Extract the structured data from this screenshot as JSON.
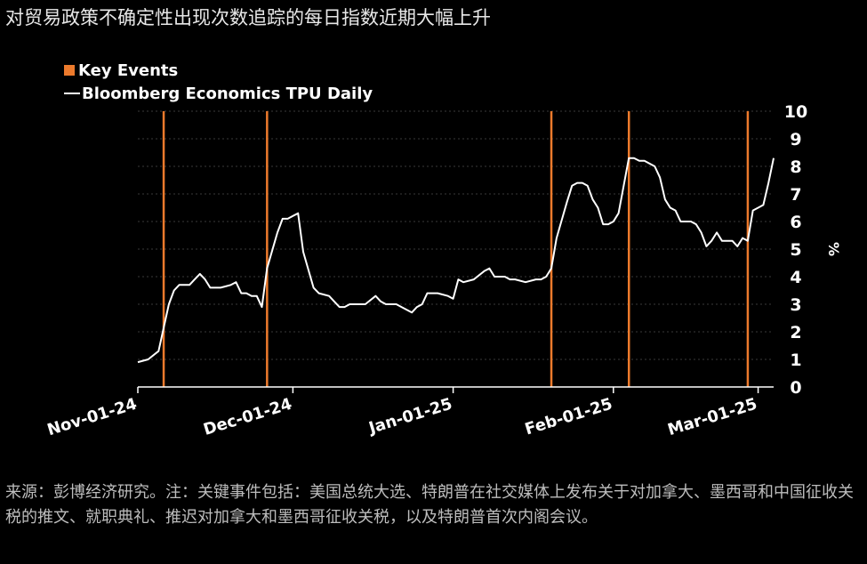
{
  "title": "对贸易政策不确定性出现次数追踪的每日指数近期大幅上升",
  "note": "来源：彭博经济研究。注：关键事件包括：美国总统大选、特朗普在社交媒体上发布关于对加拿大、墨西哥和中国征收关税的推文、就职典礼、推迟对加拿大和墨西哥征收关税，以及特朗普首次内阁会议。",
  "colors": {
    "background": "#000000",
    "series": "#ffffff",
    "events": "#ec7a2c",
    "grid": "#3a3a3a"
  },
  "chart_data": {
    "type": "line",
    "title": "对贸易政策不确定性出现次数追踪的每日指数近期大幅上升",
    "ylabel": "%",
    "ylim": [
      0,
      10
    ],
    "y_ticks": [
      0,
      1,
      2,
      3,
      4,
      5,
      6,
      7,
      8,
      9,
      10
    ],
    "grid": true,
    "legend_position": "top-left",
    "legend": [
      "Key Events",
      "Bloomberg Economics TPU Daily"
    ],
    "x_ticks": [
      "Nov-01-24",
      "Dec-01-24",
      "Jan-01-25",
      "Feb-01-25",
      "Mar-01-25"
    ],
    "key_events": [
      "2024-11-06",
      "2024-11-26",
      "2025-01-20",
      "2025-02-04",
      "2025-02-27"
    ],
    "series": [
      {
        "name": "Bloomberg Economics TPU Daily",
        "points": [
          [
            "2024-11-01",
            0.9
          ],
          [
            "2024-11-03",
            1.0
          ],
          [
            "2024-11-05",
            1.3
          ],
          [
            "2024-11-07",
            3.0
          ],
          [
            "2024-11-08",
            3.5
          ],
          [
            "2024-11-09",
            3.7
          ],
          [
            "2024-11-11",
            3.7
          ],
          [
            "2024-11-12",
            3.9
          ],
          [
            "2024-11-13",
            4.1
          ],
          [
            "2024-11-14",
            3.9
          ],
          [
            "2024-11-15",
            3.6
          ],
          [
            "2024-11-17",
            3.6
          ],
          [
            "2024-11-19",
            3.7
          ],
          [
            "2024-11-20",
            3.8
          ],
          [
            "2024-11-21",
            3.4
          ],
          [
            "2024-11-22",
            3.4
          ],
          [
            "2024-11-23",
            3.3
          ],
          [
            "2024-11-24",
            3.3
          ],
          [
            "2024-11-25",
            2.9
          ],
          [
            "2024-11-26",
            4.3
          ],
          [
            "2024-11-28",
            5.6
          ],
          [
            "2024-11-29",
            6.1
          ],
          [
            "2024-11-30",
            6.1
          ],
          [
            "2024-12-01",
            6.2
          ],
          [
            "2024-12-02",
            6.3
          ],
          [
            "2024-12-03",
            4.9
          ],
          [
            "2024-12-05",
            3.6
          ],
          [
            "2024-12-06",
            3.4
          ],
          [
            "2024-12-08",
            3.3
          ],
          [
            "2024-12-09",
            3.1
          ],
          [
            "2024-12-10",
            2.9
          ],
          [
            "2024-12-11",
            2.9
          ],
          [
            "2024-12-12",
            3.0
          ],
          [
            "2024-12-14",
            3.0
          ],
          [
            "2024-12-15",
            3.0
          ],
          [
            "2024-12-17",
            3.3
          ],
          [
            "2024-12-18",
            3.1
          ],
          [
            "2024-12-19",
            3.0
          ],
          [
            "2024-12-21",
            3.0
          ],
          [
            "2024-12-22",
            2.9
          ],
          [
            "2024-12-24",
            2.7
          ],
          [
            "2024-12-25",
            2.9
          ],
          [
            "2024-12-26",
            3.0
          ],
          [
            "2024-12-27",
            3.4
          ],
          [
            "2024-12-29",
            3.4
          ],
          [
            "2024-12-31",
            3.3
          ],
          [
            "2025-01-01",
            3.2
          ],
          [
            "2025-01-02",
            3.9
          ],
          [
            "2025-01-03",
            3.8
          ],
          [
            "2025-01-05",
            3.9
          ],
          [
            "2025-01-07",
            4.2
          ],
          [
            "2025-01-08",
            4.3
          ],
          [
            "2025-01-09",
            4.0
          ],
          [
            "2025-01-11",
            4.0
          ],
          [
            "2025-01-12",
            3.9
          ],
          [
            "2025-01-13",
            3.9
          ],
          [
            "2025-01-15",
            3.8
          ],
          [
            "2025-01-17",
            3.9
          ],
          [
            "2025-01-18",
            3.9
          ],
          [
            "2025-01-19",
            4.0
          ],
          [
            "2025-01-20",
            4.3
          ],
          [
            "2025-01-21",
            5.4
          ],
          [
            "2025-01-23",
            6.7
          ],
          [
            "2025-01-24",
            7.3
          ],
          [
            "2025-01-25",
            7.4
          ],
          [
            "2025-01-26",
            7.4
          ],
          [
            "2025-01-27",
            7.3
          ],
          [
            "2025-01-28",
            6.8
          ],
          [
            "2025-01-29",
            6.5
          ],
          [
            "2025-01-30",
            5.9
          ],
          [
            "2025-01-31",
            5.9
          ],
          [
            "2025-02-01",
            6.0
          ],
          [
            "2025-02-02",
            6.3
          ],
          [
            "2025-02-03",
            7.3
          ],
          [
            "2025-02-04",
            8.3
          ],
          [
            "2025-02-05",
            8.3
          ],
          [
            "2025-02-06",
            8.2
          ],
          [
            "2025-02-07",
            8.2
          ],
          [
            "2025-02-08",
            8.1
          ],
          [
            "2025-02-09",
            8.0
          ],
          [
            "2025-02-10",
            7.6
          ],
          [
            "2025-02-11",
            6.8
          ],
          [
            "2025-02-12",
            6.5
          ],
          [
            "2025-02-13",
            6.4
          ],
          [
            "2025-02-14",
            6.0
          ],
          [
            "2025-02-15",
            6.0
          ],
          [
            "2025-02-16",
            6.0
          ],
          [
            "2025-02-17",
            5.9
          ],
          [
            "2025-02-18",
            5.6
          ],
          [
            "2025-02-19",
            5.1
          ],
          [
            "2025-02-20",
            5.3
          ],
          [
            "2025-02-21",
            5.6
          ],
          [
            "2025-02-22",
            5.3
          ],
          [
            "2025-02-23",
            5.3
          ],
          [
            "2025-02-24",
            5.3
          ],
          [
            "2025-02-25",
            5.1
          ],
          [
            "2025-02-26",
            5.4
          ],
          [
            "2025-02-27",
            5.3
          ],
          [
            "2025-02-28",
            6.4
          ],
          [
            "2025-03-01",
            6.5
          ],
          [
            "2025-03-02",
            6.6
          ],
          [
            "2025-03-03",
            7.4
          ],
          [
            "2025-03-04",
            8.3
          ]
        ]
      }
    ]
  }
}
